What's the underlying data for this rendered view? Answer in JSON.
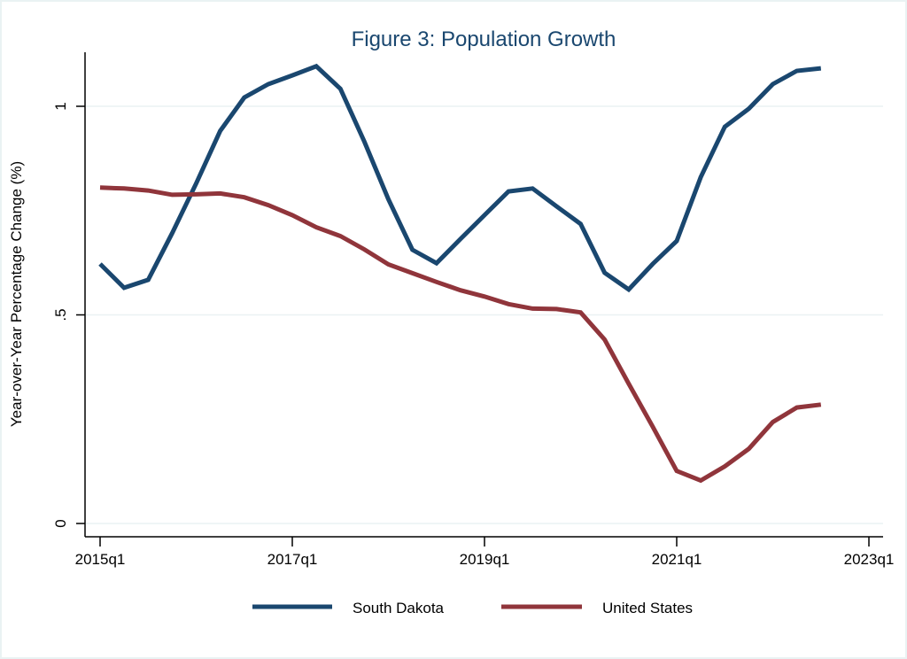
{
  "chart_data": {
    "type": "line",
    "title": "Figure 3: Population Growth",
    "xlabel": "",
    "ylabel": "Year-over-Year Percentage Change (%)",
    "ylim": [
      0,
      1.1
    ],
    "xlim_quarters": [
      0,
      32
    ],
    "x_start": "2015q1",
    "x_ticks": [
      {
        "label": "2015q1",
        "q": 0
      },
      {
        "label": "2017q1",
        "q": 8
      },
      {
        "label": "2019q1",
        "q": 16
      },
      {
        "label": "2021q1",
        "q": 24
      },
      {
        "label": "2023q1",
        "q": 32
      }
    ],
    "y_ticks": [
      {
        "label": "0",
        "value": 0
      },
      {
        "label": ".5",
        "value": 0.5
      },
      {
        "label": "1",
        "value": 1
      }
    ],
    "grid": true,
    "legend_position": "bottom",
    "x": [
      "2015q1",
      "2015q2",
      "2015q3",
      "2015q4",
      "2016q1",
      "2016q2",
      "2016q3",
      "2016q4",
      "2017q1",
      "2017q2",
      "2017q3",
      "2017q4",
      "2018q1",
      "2018q2",
      "2018q3",
      "2018q4",
      "2019q1",
      "2019q2",
      "2019q3",
      "2019q4",
      "2020q1",
      "2020q2",
      "2020q3",
      "2020q4",
      "2021q1",
      "2021q2",
      "2021q3",
      "2021q4",
      "2022q1",
      "2022q2",
      "2022q3"
    ],
    "series": [
      {
        "name": "South Dakota",
        "color": "#1a476f",
        "values": [
          0.622,
          0.565,
          0.584,
          0.696,
          0.815,
          0.941,
          1.021,
          1.053,
          1.074,
          1.096,
          1.042,
          0.915,
          0.777,
          0.656,
          0.624,
          0.682,
          0.739,
          0.796,
          0.803,
          0.76,
          0.718,
          0.601,
          0.561,
          0.622,
          0.677,
          0.83,
          0.951,
          0.994,
          1.053,
          1.085,
          1.091
        ]
      },
      {
        "name": "United States",
        "color": "#90353b",
        "values": [
          0.805,
          0.803,
          0.798,
          0.788,
          0.789,
          0.791,
          0.782,
          0.763,
          0.739,
          0.71,
          0.689,
          0.657,
          0.621,
          0.6,
          0.579,
          0.559,
          0.544,
          0.526,
          0.515,
          0.514,
          0.506,
          0.441,
          0.335,
          0.232,
          0.126,
          0.103,
          0.137,
          0.179,
          0.243,
          0.278,
          0.285
        ]
      }
    ]
  }
}
